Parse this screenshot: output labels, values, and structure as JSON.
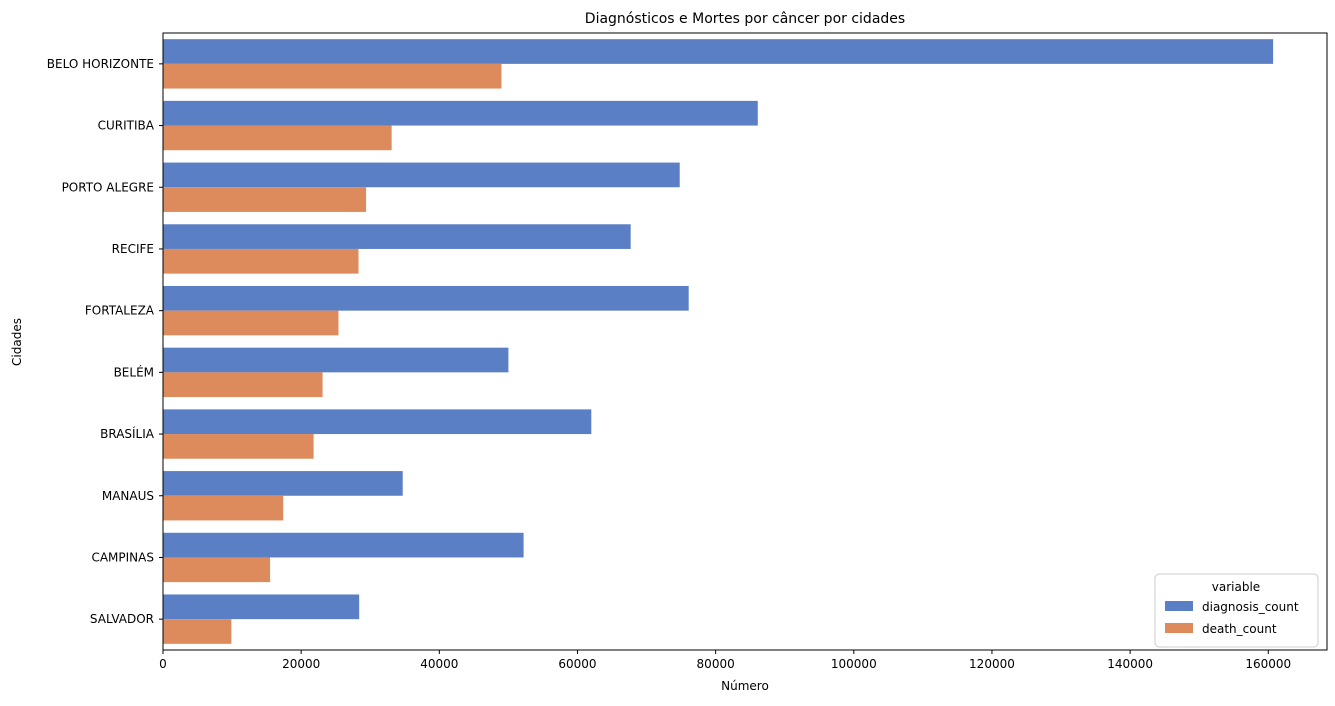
{
  "chart_data": {
    "type": "bar",
    "orientation": "horizontal",
    "title": "Diagnósticos e Mortes por câncer por cidades",
    "xlabel": "Número",
    "ylabel": "Cidades",
    "xlim": [
      0,
      168500
    ],
    "xticks": [
      0,
      20000,
      40000,
      60000,
      80000,
      100000,
      120000,
      140000,
      160000
    ],
    "grid": false,
    "legend_title": "variable",
    "legend_position": "lower right",
    "categories": [
      "BELO HORIZONTE",
      "CURITIBA",
      "PORTO ALEGRE",
      "RECIFE",
      "FORTALEZA",
      "BELÉM",
      "BRASÍLIA",
      "MANAUS",
      "CAMPINAS",
      "SALVADOR"
    ],
    "series": [
      {
        "name": "diagnosis_count",
        "color": "#5a7fc4",
        "values": [
          160700,
          86100,
          74800,
          67700,
          76100,
          50000,
          62000,
          34700,
          52200,
          28400
        ]
      },
      {
        "name": "death_count",
        "color": "#dd8a5d",
        "values": [
          49000,
          33100,
          29400,
          28300,
          25400,
          23100,
          21800,
          17400,
          15500,
          9900
        ]
      }
    ]
  }
}
